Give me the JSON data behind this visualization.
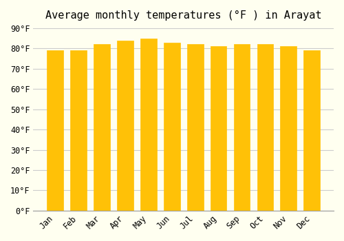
{
  "title": "Average monthly temperatures (°F ) in Arayat",
  "months": [
    "Jan",
    "Feb",
    "Mar",
    "Apr",
    "May",
    "Jun",
    "Jul",
    "Aug",
    "Sep",
    "Oct",
    "Nov",
    "Dec"
  ],
  "values": [
    79,
    79,
    82,
    84,
    85,
    83,
    82,
    81,
    82,
    82,
    81,
    79
  ],
  "bar_color_top": "#FFC107",
  "bar_color_bottom": "#FFB300",
  "background_color": "#FFFFF0",
  "grid_color": "#CCCCCC",
  "ylim": [
    0,
    90
  ],
  "ytick_step": 10,
  "title_fontsize": 11,
  "tick_fontsize": 8.5,
  "bar_width": 0.7
}
